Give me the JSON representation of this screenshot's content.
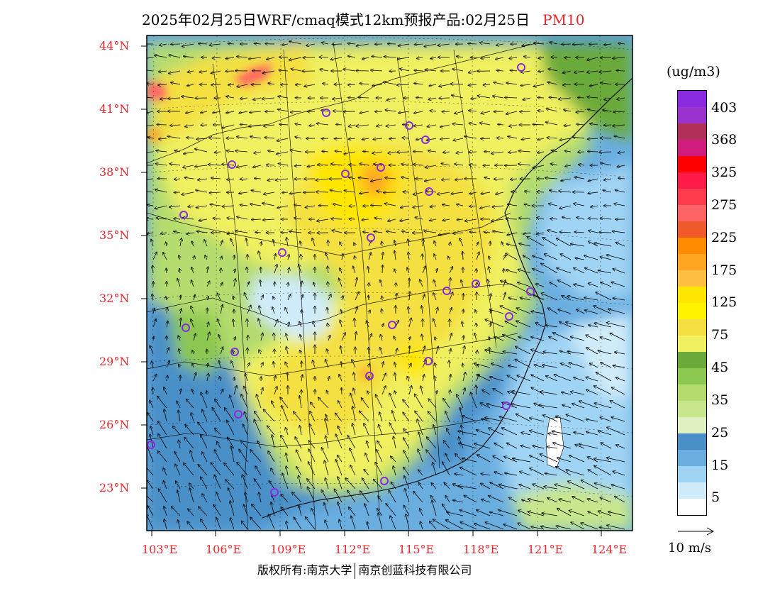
{
  "title": {
    "main": "2025年02月25日WRF/cmaq模式12km预报产品:02月25日",
    "pollutant": "PM10"
  },
  "map": {
    "lat_labels": [
      "44°N",
      "41°N",
      "38°N",
      "35°N",
      "32°N",
      "29°N",
      "26°N",
      "23°N"
    ],
    "lon_labels": [
      "103°E",
      "106°E",
      "109°E",
      "112°E",
      "115°E",
      "118°E",
      "121°E",
      "124°E"
    ]
  },
  "colorbar": {
    "unit": "(ug/m3)",
    "labels": [
      "403",
      "368",
      "325",
      "275",
      "225",
      "175",
      "125",
      "75",
      "45",
      "35",
      "25",
      "15",
      "5"
    ],
    "colors": [
      "#8a2be2",
      "#9a32cd",
      "#b0305a",
      "#d01c7c",
      "#ff0000",
      "#ff1a4a",
      "#ff3b4e",
      "#ff6464",
      "#f05a2a",
      "#ff8c00",
      "#ffa520",
      "#ffbf40",
      "#ffe600",
      "#fff400",
      "#f4e040",
      "#f0f060",
      "#6aaa3a",
      "#8cc850",
      "#b4dc6e",
      "#c8e68c",
      "#e0f0c0",
      "#4a90c8",
      "#6aaee0",
      "#a0d4f4",
      "#d0ecfa",
      "#ffffff"
    ]
  },
  "vector": {
    "reference_label": "10 m/s"
  },
  "footer": {
    "left": "版权所有:南京大学",
    "right": "南京创蓝科技有限公司"
  }
}
